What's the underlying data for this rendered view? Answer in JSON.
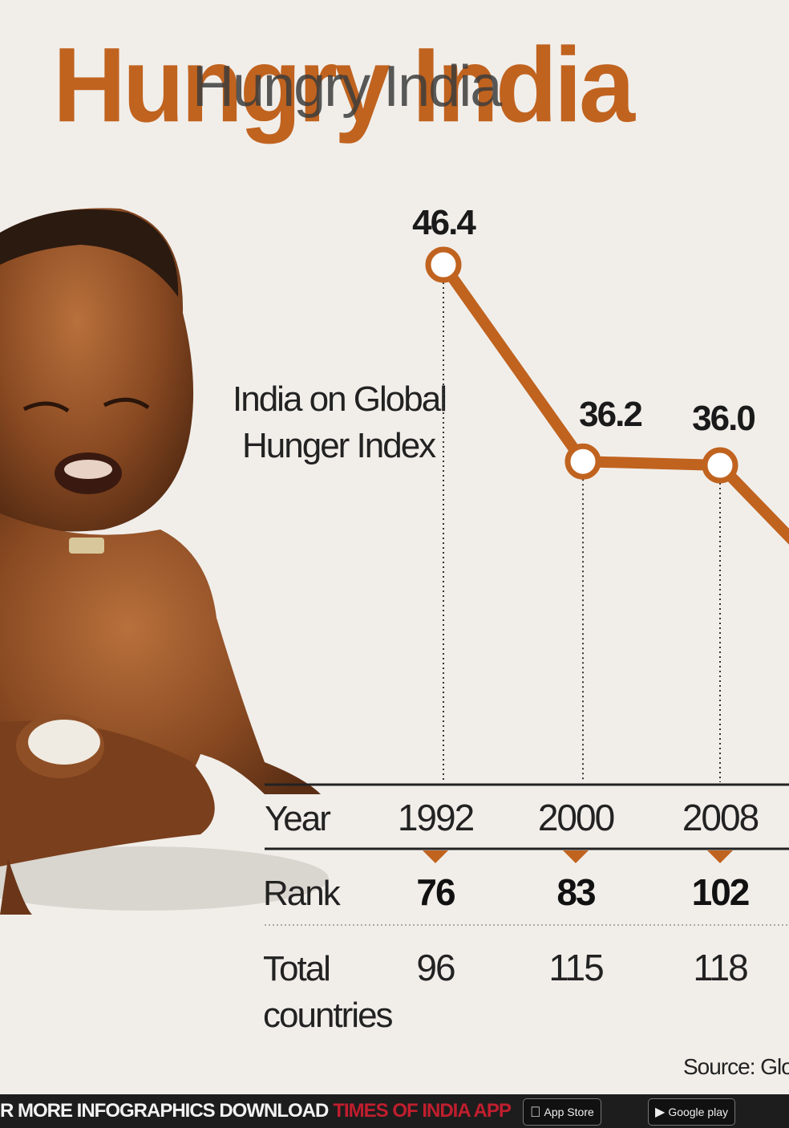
{
  "title": "Hungry India",
  "title_overlay": "Hungry India",
  "chart_data": {
    "type": "line",
    "subtitle": "India on Global Hunger Index",
    "x": [
      "1992",
      "2000",
      "2008"
    ],
    "values": [
      46.4,
      36.2,
      36.0
    ],
    "value_labels": [
      "46.4",
      "36.2",
      "36.0"
    ],
    "line_color": "#c0631f",
    "table": {
      "year_label": "Year",
      "years": [
        "1992",
        "2000",
        "2008"
      ],
      "rank_label": "Rank",
      "ranks": [
        "76",
        "83",
        "102"
      ],
      "total_label_1": "Total",
      "total_label_2": "countries",
      "totals": [
        "96",
        "115",
        "118"
      ]
    }
  },
  "source": "Source: Glo",
  "footer": {
    "text": "R MORE INFOGRAPHICS DOWNLOAD",
    "brand": "TIMES OF INDIA APP",
    "app_store": "App Store",
    "google_play": "Google play"
  }
}
